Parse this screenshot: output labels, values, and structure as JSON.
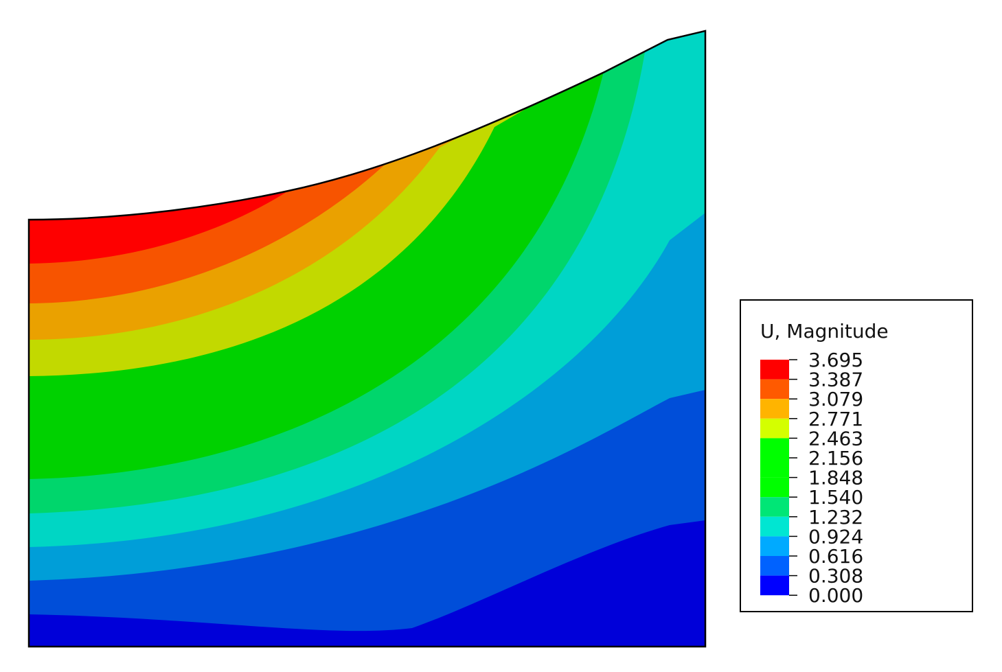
{
  "chart_data": {
    "type": "heatmap",
    "title": "",
    "legend": {
      "title": "U, Magnitude",
      "placement": "right",
      "tick_labels": [
        "3.695",
        "3.387",
        "3.079",
        "2.771",
        "2.463",
        "2.156",
        "1.848",
        "1.540",
        "1.232",
        "0.924",
        "0.616",
        "0.308",
        "0.000"
      ],
      "band_colors": [
        "#ff0000",
        "#ff5a00",
        "#ffb400",
        "#d4ff00",
        "#00ff00",
        "#00ff00",
        "#00ff00",
        "#00e676",
        "#00e6d2",
        "#00aaff",
        "#0062ff",
        "#0000ff"
      ]
    },
    "field": {
      "max": 3.695,
      "min": 0.0,
      "max_location": "top-left",
      "min_location": "bottom-right",
      "contour_colors": [
        "#fe0000",
        "#f75400",
        "#eaa100",
        "#c2d900",
        "#00d100",
        "#00d66c",
        "#00d6c4",
        "#009ed8",
        "#004ed9",
        "#0000d9"
      ]
    }
  }
}
